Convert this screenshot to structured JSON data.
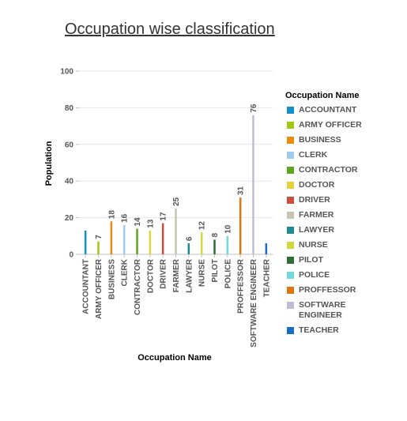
{
  "chart_data": {
    "type": "bar",
    "title": "Occupation wise classification",
    "xlabel": "Occupation Name",
    "ylabel": "Population",
    "ylim": [
      0,
      100
    ],
    "yticks": [
      0,
      20,
      40,
      60,
      80,
      100
    ],
    "grid": true,
    "legend_title": "Occupation Name",
    "legend_position": "right",
    "categories": [
      "ACCOUNTANT",
      "ARMY OFFICER",
      "BUSINESS",
      "CLERK",
      "CONTRACTOR",
      "DOCTOR",
      "DRIVER",
      "FARMER",
      "LAWYER",
      "NURSE",
      "PILOT",
      "POLICE",
      "PROFFESSOR",
      "SOFTWARE ENGINEER",
      "TEACHER"
    ],
    "values": [
      13,
      7,
      18,
      16,
      14,
      13,
      17,
      25,
      6,
      12,
      8,
      10,
      31,
      76,
      6
    ],
    "data_labels": [
      "",
      "7",
      "18",
      "16",
      "14",
      "13",
      "17",
      "25",
      "6",
      "12",
      "8",
      "10",
      "31",
      "76",
      ""
    ],
    "legend_labels": [
      "ACCOUNTANT",
      "ARMY OFFICER",
      "BUSINESS",
      "CLERK",
      "CONTRACTOR",
      "DOCTOR",
      "DRIVER",
      "FARMER",
      "LAWYER",
      "NURSE",
      "PILOT",
      "POLICE",
      "PROFFESSOR",
      "SOFTWARE\nENGINEER",
      "TEACHER"
    ],
    "colors": [
      "#1690C9",
      "#A0C814",
      "#EE8A10",
      "#9ECBEF",
      "#5FA41E",
      "#E6D13A",
      "#CC4E3A",
      "#C5C5B2",
      "#1E8A91",
      "#D2D73C",
      "#2D6E32",
      "#6FD9DC",
      "#E0750F",
      "#BDBDD6",
      "#1A6DC4"
    ]
  }
}
